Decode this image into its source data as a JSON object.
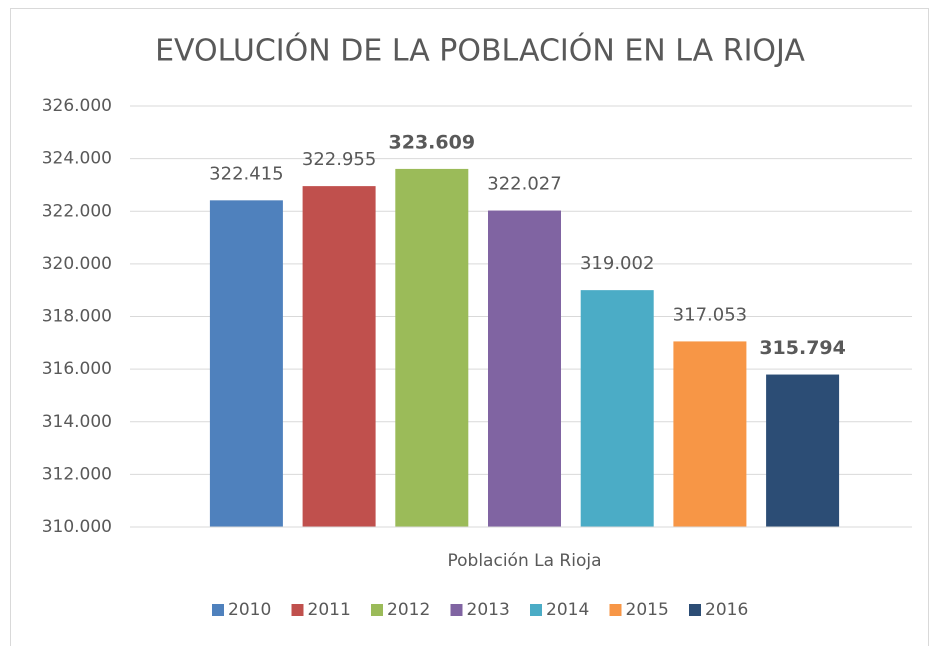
{
  "chart_data": {
    "type": "bar",
    "title": "EVOLUCIÓN DE LA POBLACIÓN EN LA RIOJA",
    "categories": [
      "Población La Rioja"
    ],
    "series": [
      {
        "name": "2010",
        "color": "#4f81bd",
        "values": [
          322415
        ],
        "value_labels": [
          "322.415"
        ]
      },
      {
        "name": "2011",
        "color": "#c0504d",
        "values": [
          322955
        ],
        "value_labels": [
          "322.955"
        ]
      },
      {
        "name": "2012",
        "color": "#9bbb59",
        "values": [
          323609
        ],
        "value_labels": [
          "323.609"
        ],
        "label_bold": true
      },
      {
        "name": "2013",
        "color": "#8064a2",
        "values": [
          322027
        ],
        "value_labels": [
          "322.027"
        ]
      },
      {
        "name": "2014",
        "color": "#4bacc6",
        "values": [
          319002
        ],
        "value_labels": [
          "319.002"
        ]
      },
      {
        "name": "2015",
        "color": "#f79646",
        "values": [
          317053
        ],
        "value_labels": [
          "317.053"
        ]
      },
      {
        "name": "2016",
        "color": "#2c4d75",
        "values": [
          315794
        ],
        "value_labels": [
          "315.794"
        ],
        "label_bold": true
      }
    ],
    "ylim": [
      310000,
      326000
    ],
    "yticks": [
      {
        "value": 310000,
        "label": "310.000"
      },
      {
        "value": 312000,
        "label": "312.000"
      },
      {
        "value": 314000,
        "label": "314.000"
      },
      {
        "value": 316000,
        "label": "316.000"
      },
      {
        "value": 318000,
        "label": "318.000"
      },
      {
        "value": 320000,
        "label": "320.000"
      },
      {
        "value": 322000,
        "label": "322.000"
      },
      {
        "value": 324000,
        "label": "324.000"
      },
      {
        "value": 326000,
        "label": "326.000"
      }
    ],
    "grid": true,
    "legend": "bottom"
  }
}
